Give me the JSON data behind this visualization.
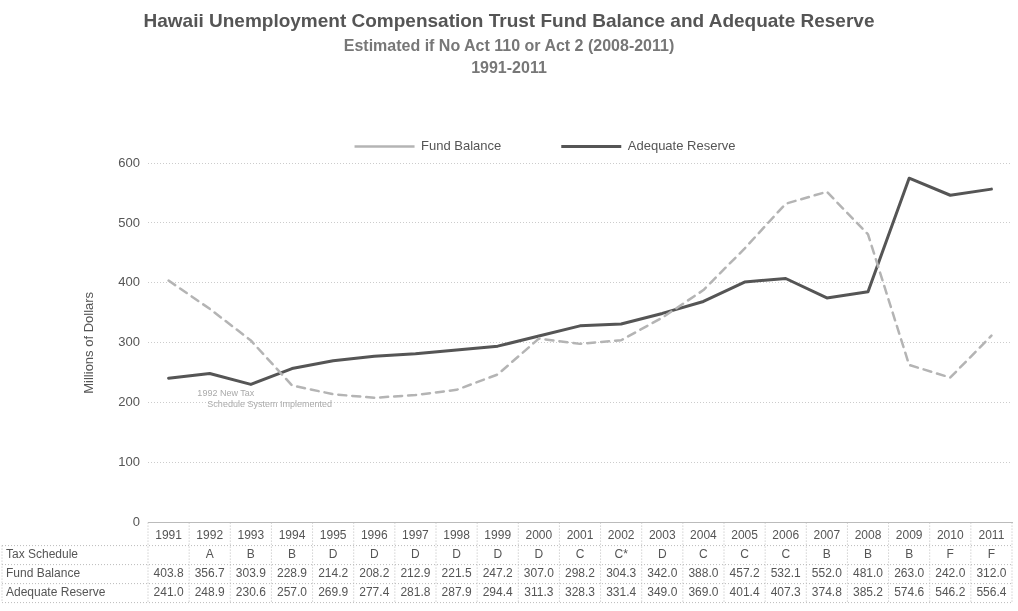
{
  "chart_data": {
    "type": "line",
    "title": "Hawaii Unemployment Compensation Trust Fund Balance and Adequate Reserve",
    "subtitle": "Estimated if No Act 110 or Act 2 (2008-2011)\n1991-2011",
    "ylabel": "Millions of Dollars",
    "categories": [
      "1991",
      "1992",
      "1993",
      "1994",
      "1995",
      "1996",
      "1997",
      "1998",
      "1999",
      "2000",
      "2001",
      "2002",
      "2003",
      "2004",
      "2005",
      "2006",
      "2007",
      "2008",
      "2009",
      "2010",
      "2011"
    ],
    "series": [
      {
        "name": "Fund Balance",
        "color": "#b4b4b4",
        "line_style": "dashed",
        "values": [
          403.8,
          356.7,
          303.9,
          228.9,
          214.2,
          208.2,
          212.9,
          221.5,
          247.2,
          307.0,
          298.2,
          304.3,
          342.0,
          388.0,
          457.2,
          532.1,
          552.0,
          481.0,
          263.0,
          242.0,
          312.0
        ],
        "value_labels": [
          "403.8",
          "356.7",
          "303.9",
          "228.9",
          "214.2",
          "208.2",
          "212.9",
          "221.5",
          "247.2",
          "307.0",
          "298.2",
          "304.3",
          "342.0",
          "388.0",
          "457.2",
          "532.1",
          "552.0",
          "481.0",
          "263.0",
          "242.0",
          "312.0"
        ]
      },
      {
        "name": "Adequate Reserve",
        "color": "#555555",
        "line_style": "solid",
        "values": [
          241.0,
          248.9,
          230.6,
          257.0,
          269.9,
          277.4,
          281.8,
          287.9,
          294.4,
          311.3,
          328.3,
          331.4,
          349.0,
          369.0,
          401.4,
          407.3,
          374.8,
          385.2,
          574.6,
          546.2,
          556.4
        ],
        "value_labels": [
          "241.0",
          "248.9",
          "230.6",
          "257.0",
          "269.9",
          "277.4",
          "281.8",
          "287.9",
          "294.4",
          "311.3",
          "328.3",
          "331.4",
          "349.0",
          "369.0",
          "401.4",
          "407.3",
          "374.8",
          "385.2",
          "574.6",
          "546.2",
          "556.4"
        ]
      }
    ],
    "ylim": [
      0,
      600
    ],
    "yticks": [
      0,
      100,
      200,
      300,
      400,
      500,
      600
    ],
    "grid": "y",
    "legend": "top",
    "marker": "none",
    "annotations": [
      "Tax Schedule",
      "1992 New Tax Schedule System Implemented",
      "A",
      "B",
      "B",
      "D",
      "D",
      "D",
      "D",
      "D",
      "D",
      "C",
      "C*",
      "D",
      "C",
      "C",
      "C",
      "B",
      "B",
      "B",
      "F",
      "F"
    ]
  }
}
